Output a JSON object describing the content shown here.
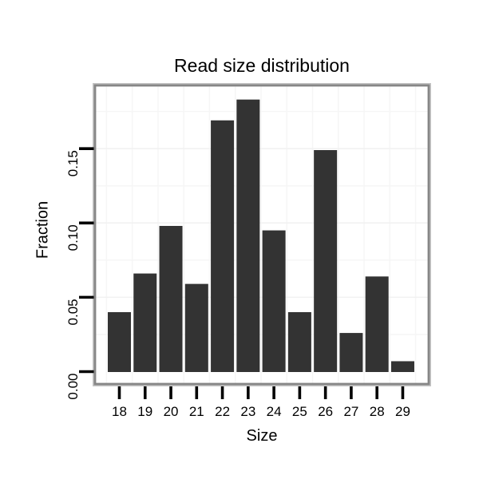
{
  "chart_data": {
    "type": "bar",
    "title": "Read size distribution",
    "xlabel": "Size",
    "ylabel": "Fraction",
    "categories": [
      "18",
      "19",
      "20",
      "21",
      "22",
      "23",
      "24",
      "25",
      "26",
      "27",
      "28",
      "29"
    ],
    "values": [
      0.04,
      0.066,
      0.098,
      0.059,
      0.169,
      0.183,
      0.095,
      0.04,
      0.149,
      0.026,
      0.064,
      0.007
    ],
    "ylim": [
      0,
      0.1925
    ],
    "ytick_values": [
      0,
      0.05,
      0.1,
      0.15
    ],
    "ytick_labels": [
      "0.00",
      "0.05",
      "0.10",
      "0.15"
    ],
    "y_grid_major_values": [
      0.05,
      0.1,
      0.15
    ],
    "y_grid_minor_values": [
      0.025,
      0.075,
      0.125,
      0.175
    ],
    "grid": "on",
    "legend": "none",
    "bar_color": "#333333",
    "grid_major_color": "#f1f1f1",
    "grid_minor_color": "#f6f6f6",
    "panel_border_color": "#868686",
    "panel_background_color": "#ffffff",
    "tick_color": "#000000",
    "text_color": "#000000",
    "background_color": "#ffffff"
  }
}
